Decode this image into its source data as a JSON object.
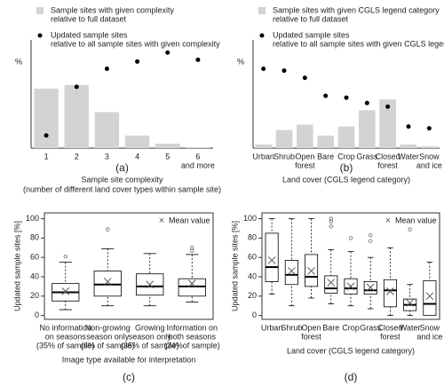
{
  "chart_data": [
    {
      "type": "bar",
      "caption": "(a)",
      "ylabel": "%",
      "xlabel": [
        "Sample site complexity",
        "(number of different land cover types within sample site)"
      ],
      "categories": [
        [
          "1"
        ],
        [
          "2"
        ],
        [
          "3"
        ],
        [
          "4"
        ],
        [
          "5"
        ],
        [
          "6",
          "and more"
        ]
      ],
      "ylim": [
        0,
        60
      ],
      "series": [
        {
          "name": [
            "Sample sites with given complexity",
            "relative to full dataset"
          ],
          "style": "bar",
          "color": "#d3d3d3",
          "values": [
            33,
            35,
            20,
            7,
            2.5,
            0.5
          ]
        },
        {
          "name": [
            "Updated sample sites",
            "relative to all sample sites with given complexity"
          ],
          "style": "point",
          "color": "#000000",
          "values": [
            7,
            34,
            44,
            48,
            53,
            49
          ]
        }
      ]
    },
    {
      "type": "bar",
      "caption": "(b)",
      "ylabel": "%",
      "xlabel": [
        "Land cover (CGLS legend category)"
      ],
      "categories": [
        [
          "Urban"
        ],
        [
          "Shrub"
        ],
        [
          "Open",
          "forest"
        ],
        [
          "Bare"
        ],
        [
          "Crop"
        ],
        [
          "Grass"
        ],
        [
          "Closed",
          "forest"
        ],
        [
          "Water"
        ],
        [
          "Snow",
          "and ice"
        ]
      ],
      "ylim": [
        0,
        60
      ],
      "series": [
        {
          "name": [
            "Sample sites with given CGLS legend category",
            "relative to full dataset"
          ],
          "style": "bar",
          "color": "#d3d3d3",
          "values": [
            2,
            10,
            13,
            7,
            12,
            21,
            27,
            2,
            1
          ]
        },
        {
          "name": [
            "Updated sample sites",
            "relative to all sample sites with given CGLS legend category"
          ],
          "style": "point",
          "color": "#000000",
          "values": [
            44,
            43,
            39,
            29,
            28,
            25,
            23,
            12,
            11
          ]
        }
      ]
    },
    {
      "type": "box",
      "caption": "(c)",
      "ylabel": "Updated sample sites [%]",
      "xlabel": [
        "Image type available for interpretation"
      ],
      "categories": [
        [
          "No information",
          "on seasons",
          "(35% of sample)"
        ],
        [
          "Non-growing",
          "season only",
          "(6% of sample)"
        ],
        [
          "Growing",
          "season only",
          "(35% of sample)"
        ],
        [
          "Information on",
          "both seasons",
          "(24%of sample)"
        ]
      ],
      "ylim": [
        -4,
        106
      ],
      "yticks": [
        0,
        20,
        40,
        60,
        80,
        100
      ],
      "mean_label": "Mean value",
      "color": "#000000",
      "mean_color": "#555555",
      "boxes": [
        {
          "whisker_low": 6,
          "q1": 15,
          "median": 24,
          "q3": 33,
          "whisker_high": 55,
          "outliers": [
            61
          ],
          "mean": 25
        },
        {
          "whisker_low": 10,
          "q1": 20,
          "median": 32,
          "q3": 46,
          "whisker_high": 69,
          "outliers": [
            89
          ],
          "mean": 35
        },
        {
          "whisker_low": 10,
          "q1": 21,
          "median": 30,
          "q3": 43,
          "whisker_high": 64,
          "outliers": [],
          "mean": 32
        },
        {
          "whisker_low": 14,
          "q1": 20,
          "median": 30,
          "q3": 38,
          "whisker_high": 63,
          "outliers": [
            67,
            70
          ],
          "mean": 33
        }
      ]
    },
    {
      "type": "box",
      "caption": "(d)",
      "ylabel": "Updated sample sites [%]",
      "xlabel": [
        "Land cover (CGLS legend category)"
      ],
      "categories": [
        [
          "Urban"
        ],
        [
          "Shrub"
        ],
        [
          "Open",
          "forest"
        ],
        [
          "Bare"
        ],
        [
          "Crop"
        ],
        [
          "Grass"
        ],
        [
          "Closed",
          "forest"
        ],
        [
          "Water"
        ],
        [
          "Snow",
          "and ice"
        ]
      ],
      "ylim": [
        -4,
        106
      ],
      "yticks": [
        0,
        20,
        40,
        60,
        80,
        100
      ],
      "mean_label": "Mean value",
      "color": "#000000",
      "mean_color": "#555555",
      "boxes": [
        {
          "whisker_low": 22,
          "q1": 35,
          "median": 50,
          "q3": 85,
          "whisker_high": 100,
          "outliers": [],
          "mean": 57
        },
        {
          "whisker_low": 10,
          "q1": 32,
          "median": 42,
          "q3": 57,
          "whisker_high": 100,
          "outliers": [],
          "mean": 46
        },
        {
          "whisker_low": 18,
          "q1": 30,
          "median": 40,
          "q3": 63,
          "whisker_high": 100,
          "outliers": [],
          "mean": 46
        },
        {
          "whisker_low": 12,
          "q1": 23,
          "median": 28,
          "q3": 41,
          "whisker_high": 68,
          "outliers": [
            92,
            97,
            100
          ],
          "mean": 34
        },
        {
          "whisker_low": 10,
          "q1": 22,
          "median": 28,
          "q3": 38,
          "whisker_high": 66,
          "outliers": [
            80
          ],
          "mean": 30
        },
        {
          "whisker_low": 7,
          "q1": 22,
          "median": 26,
          "q3": 35,
          "whisker_high": 60,
          "outliers": [
            77,
            83
          ],
          "mean": 29
        },
        {
          "whisker_low": 0,
          "q1": 9,
          "median": 26,
          "q3": 37,
          "whisker_high": 70,
          "outliers": [],
          "mean": 25
        },
        {
          "whisker_low": 0,
          "q1": 5,
          "median": 11,
          "q3": 17,
          "whisker_high": 32,
          "outliers": [
            89
          ],
          "mean": 13
        },
        {
          "whisker_low": 0,
          "q1": 0,
          "median": 12,
          "q3": 36,
          "whisker_high": 55,
          "outliers": [],
          "mean": 20
        }
      ]
    }
  ]
}
